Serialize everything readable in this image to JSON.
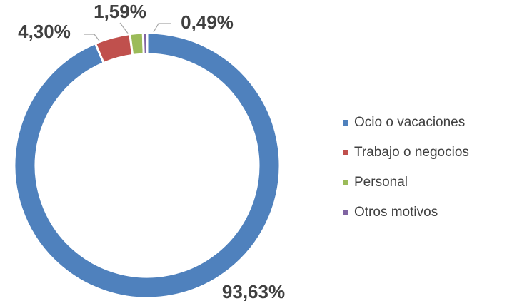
{
  "chart_data": {
    "type": "donut",
    "categories": [
      "Ocio o vacaciones",
      "Trabajo o negocios",
      "Personal",
      "Otros motivos"
    ],
    "values": [
      93.63,
      4.3,
      1.59,
      0.49
    ],
    "value_labels": [
      "93,63%",
      "4,30%",
      "1,59%",
      "0,49%"
    ],
    "colors": [
      "#4f81bd",
      "#c0504d",
      "#9bbb59",
      "#8064a2"
    ],
    "legend": "right"
  }
}
